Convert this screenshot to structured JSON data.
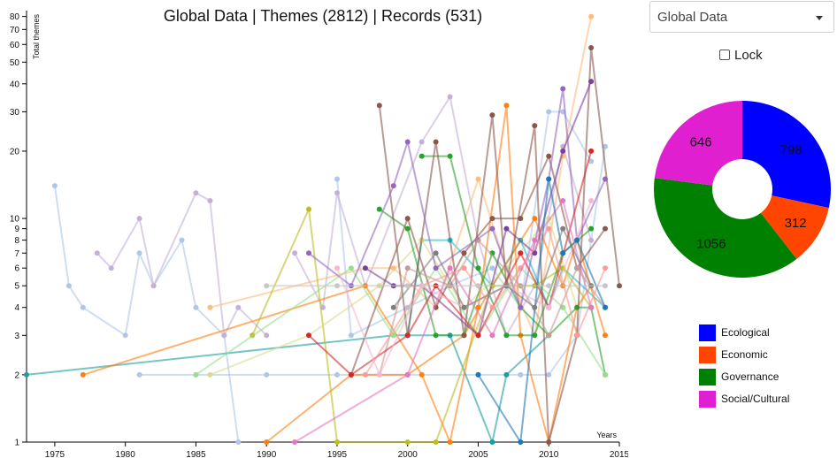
{
  "header": {
    "title": "Global Data | Themes (2812) | Records (531)"
  },
  "controls": {
    "region_value": "Global Data",
    "lock_label": "Lock",
    "lock_checked": false
  },
  "chart_data": [
    {
      "type": "line",
      "title": "Global Data | Themes (2812) | Records (531)",
      "xlabel": "Years",
      "ylabel": "Total themes",
      "xlim": [
        1973,
        2015
      ],
      "ylim": [
        1,
        85
      ],
      "yscale": "log",
      "x_ticks": [
        1975,
        1980,
        1985,
        1990,
        1995,
        2000,
        2005,
        2010,
        2015
      ],
      "y_ticks": [
        1,
        2,
        3,
        4,
        5,
        6,
        7,
        8,
        9,
        10,
        20,
        30,
        40,
        50,
        60,
        70,
        80
      ],
      "legend": false,
      "grid": false,
      "series": [
        {
          "color": "#aec7e8",
          "points": [
            [
              1975,
              14
            ],
            [
              1976,
              5
            ],
            [
              1977,
              4
            ],
            [
              1980,
              3
            ],
            [
              1981,
              7
            ],
            [
              1982,
              5
            ],
            [
              1984,
              8
            ],
            [
              1985,
              4
            ],
            [
              1987,
              3
            ],
            [
              1988,
              1
            ]
          ]
        },
        {
          "color": "#aec7e8",
          "points": [
            [
              1981,
              2
            ],
            [
              1985,
              2
            ],
            [
              1990,
              2
            ],
            [
              1995,
              2
            ],
            [
              2000,
              2
            ],
            [
              2005,
              2
            ],
            [
              2008,
              2
            ],
            [
              2010,
              2
            ],
            [
              2012,
              3
            ],
            [
              2014,
              21
            ]
          ]
        },
        {
          "color": "#aec7e8",
          "points": [
            [
              1995,
              15
            ],
            [
              1996,
              3
            ],
            [
              2000,
              4
            ],
            [
              2003,
              5
            ],
            [
              2006,
              6
            ],
            [
              2008,
              4
            ],
            [
              2010,
              30
            ],
            [
              2011,
              30
            ],
            [
              2013,
              18
            ]
          ]
        },
        {
          "color": "#c5b0d5",
          "points": [
            [
              1978,
              7
            ],
            [
              1979,
              6
            ],
            [
              1981,
              10
            ],
            [
              1982,
              5
            ],
            [
              1985,
              13
            ],
            [
              1986,
              12
            ],
            [
              1987,
              3
            ],
            [
              1988,
              4
            ],
            [
              1990,
              3
            ]
          ]
        },
        {
          "color": "#c5b0d5",
          "points": [
            [
              1992,
              7
            ],
            [
              1994,
              4
            ],
            [
              1995,
              13
            ],
            [
              1997,
              5
            ],
            [
              2001,
              22
            ],
            [
              2003,
              35
            ],
            [
              2005,
              8
            ],
            [
              2007,
              3
            ],
            [
              2009,
              5
            ],
            [
              2011,
              21
            ],
            [
              2013,
              8
            ]
          ]
        },
        {
          "color": "#1a9ea0",
          "points": [
            [
              1973,
              2
            ],
            [
              1999,
              3
            ],
            [
              2003,
              3
            ],
            [
              2006,
              1
            ],
            [
              2007,
              2
            ],
            [
              2010,
              3
            ]
          ]
        },
        {
          "color": "#17becf",
          "points": [
            [
              2000,
              3
            ],
            [
              2001,
              8
            ],
            [
              2003,
              8
            ],
            [
              2006,
              5
            ],
            [
              2008,
              8
            ],
            [
              2010,
              4
            ],
            [
              2011,
              6
            ],
            [
              2014,
              4
            ]
          ]
        },
        {
          "color": "#ff7f0e",
          "points": [
            [
              1977,
              2
            ],
            [
              1997,
              5
            ],
            [
              2001,
              2
            ],
            [
              2003,
              1
            ],
            [
              2005,
              4
            ],
            [
              2007,
              32
            ],
            [
              2008,
              3
            ],
            [
              2010,
              1
            ],
            [
              2012,
              4
            ],
            [
              2013,
              5
            ]
          ]
        },
        {
          "color": "#ff7f0e",
          "points": [
            [
              1990,
              1
            ],
            [
              1996,
              2
            ],
            [
              2000,
              2
            ],
            [
              2004,
              3
            ],
            [
              2006,
              5
            ],
            [
              2009,
              10
            ],
            [
              2011,
              5
            ],
            [
              2012,
              8
            ],
            [
              2014,
              3
            ]
          ]
        },
        {
          "color": "#ffbb78",
          "points": [
            [
              1986,
              4
            ],
            [
              1997,
              6
            ],
            [
              1999,
              6
            ],
            [
              2002,
              4
            ],
            [
              2005,
              15
            ],
            [
              2007,
              6
            ],
            [
              2009,
              3
            ],
            [
              2011,
              19
            ],
            [
              2013,
              80
            ]
          ]
        },
        {
          "color": "#bcbd22",
          "points": [
            [
              1989,
              3
            ],
            [
              1993,
              11
            ],
            [
              1995,
              1
            ],
            [
              2000,
              1
            ],
            [
              2002,
              1
            ],
            [
              2006,
              5
            ],
            [
              2009,
              5
            ],
            [
              2011,
              6
            ],
            [
              2013,
              4
            ]
          ]
        },
        {
          "color": "#dbdb8d",
          "points": [
            [
              1986,
              2
            ],
            [
              1993,
              3
            ],
            [
              1998,
              5
            ],
            [
              2001,
              8
            ],
            [
              2004,
              4
            ],
            [
              2007,
              6
            ],
            [
              2010,
              10
            ],
            [
              2012,
              4
            ]
          ]
        },
        {
          "color": "#2ca02c",
          "points": [
            [
              1998,
              11
            ],
            [
              2000,
              9
            ],
            [
              2002,
              3
            ],
            [
              2004,
              3
            ],
            [
              2006,
              7
            ],
            [
              2008,
              4
            ],
            [
              2010,
              3
            ],
            [
              2012,
              4
            ],
            [
              2013,
              4
            ],
            [
              2014,
              2
            ]
          ]
        },
        {
          "color": "#2ca02c",
          "points": [
            [
              2001,
              19
            ],
            [
              2003,
              19
            ],
            [
              2005,
              6
            ],
            [
              2007,
              3
            ],
            [
              2009,
              3
            ],
            [
              2011,
              7
            ],
            [
              2013,
              9
            ]
          ]
        },
        {
          "color": "#98df8a",
          "points": [
            [
              1985,
              2
            ],
            [
              1996,
              6
            ],
            [
              1999,
              3
            ],
            [
              2002,
              6
            ],
            [
              2005,
              3
            ],
            [
              2008,
              6
            ],
            [
              2011,
              4
            ],
            [
              2014,
              2
            ]
          ]
        },
        {
          "color": "#8c564b",
          "points": [
            [
              1998,
              32
            ],
            [
              2000,
              3
            ],
            [
              2002,
              22
            ],
            [
              2004,
              3
            ],
            [
              2006,
              29
            ],
            [
              2007,
              5
            ],
            [
              2009,
              26
            ],
            [
              2010,
              1
            ],
            [
              2012,
              3
            ],
            [
              2013,
              58
            ],
            [
              2015,
              5
            ]
          ]
        },
        {
          "color": "#8c564b",
          "points": [
            [
              1996,
              2
            ],
            [
              2000,
              10
            ],
            [
              2002,
              4
            ],
            [
              2004,
              7
            ],
            [
              2006,
              10
            ],
            [
              2008,
              10
            ],
            [
              2010,
              19
            ],
            [
              2012,
              6
            ],
            [
              2014,
              9
            ]
          ]
        },
        {
          "color": "#c49c94",
          "points": [
            [
              1998,
              2
            ],
            [
              2000,
              6
            ],
            [
              2003,
              5
            ],
            [
              2005,
              8
            ],
            [
              2008,
              5
            ],
            [
              2010,
              3
            ],
            [
              2012,
              6
            ],
            [
              2014,
              4
            ]
          ]
        },
        {
          "color": "#9467bd",
          "points": [
            [
              1993,
              7
            ],
            [
              1996,
              5
            ],
            [
              1999,
              14
            ],
            [
              2000,
              22
            ],
            [
              2002,
              6
            ],
            [
              2006,
              9
            ],
            [
              2008,
              4
            ],
            [
              2010,
              15
            ],
            [
              2011,
              38
            ],
            [
              2012,
              8
            ],
            [
              2014,
              15
            ]
          ]
        },
        {
          "color": "#7b3f9e",
          "points": [
            [
              1997,
              6
            ],
            [
              1999,
              5
            ],
            [
              2001,
              5
            ],
            [
              2005,
              3
            ],
            [
              2007,
              9
            ],
            [
              2009,
              7
            ],
            [
              2011,
              20
            ],
            [
              2013,
              41
            ]
          ]
        },
        {
          "color": "#d62728",
          "points": [
            [
              1993,
              3
            ],
            [
              1996,
              2
            ],
            [
              2000,
              3
            ],
            [
              2002,
              5
            ],
            [
              2005,
              3
            ],
            [
              2008,
              7
            ],
            [
              2010,
              4
            ],
            [
              2013,
              20
            ]
          ]
        },
        {
          "color": "#ff9896",
          "points": [
            [
              1997,
              2
            ],
            [
              2001,
              5
            ],
            [
              2004,
              6
            ],
            [
              2006,
              4
            ],
            [
              2008,
              6
            ],
            [
              2010,
              9
            ],
            [
              2012,
              3
            ],
            [
              2014,
              6
            ]
          ]
        },
        {
          "color": "#e377c2",
          "points": [
            [
              1992,
              1
            ],
            [
              2000,
              2
            ],
            [
              2003,
              6
            ],
            [
              2006,
              3
            ],
            [
              2009,
              8
            ],
            [
              2011,
              12
            ],
            [
              2013,
              4
            ]
          ]
        },
        {
          "color": "#f7b6d2",
          "points": [
            [
              1995,
              6
            ],
            [
              1998,
              2
            ],
            [
              2001,
              5
            ],
            [
              2004,
              4
            ],
            [
              2007,
              5
            ],
            [
              2010,
              4
            ],
            [
              2013,
              12
            ]
          ]
        },
        {
          "color": "#1f77b4",
          "points": [
            [
              2005,
              2
            ],
            [
              2008,
              1
            ],
            [
              2010,
              15
            ],
            [
              2011,
              7
            ],
            [
              2012,
              8
            ],
            [
              2014,
              4
            ]
          ]
        },
        {
          "color": "#7f7f7f",
          "points": [
            [
              1999,
              4
            ],
            [
              2002,
              7
            ],
            [
              2004,
              4
            ],
            [
              2007,
              5
            ],
            [
              2009,
              4
            ],
            [
              2011,
              9
            ],
            [
              2013,
              5
            ]
          ]
        },
        {
          "color": "#c7c7c7",
          "points": [
            [
              1990,
              5
            ],
            [
              1995,
              5
            ],
            [
              2000,
              5
            ],
            [
              2005,
              5
            ],
            [
              2010,
              5
            ],
            [
              2014,
              5
            ]
          ]
        }
      ]
    },
    {
      "type": "pie",
      "donut": true,
      "slices": [
        {
          "label": "Ecological",
          "value": 798,
          "color": "#0000ff"
        },
        {
          "label": "Economic",
          "value": 312,
          "color": "#ff4500"
        },
        {
          "label": "Governance",
          "value": 1056,
          "color": "#008000"
        },
        {
          "label": "Social/Cultural",
          "value": 646,
          "color": "#e020d0"
        }
      ]
    }
  ]
}
